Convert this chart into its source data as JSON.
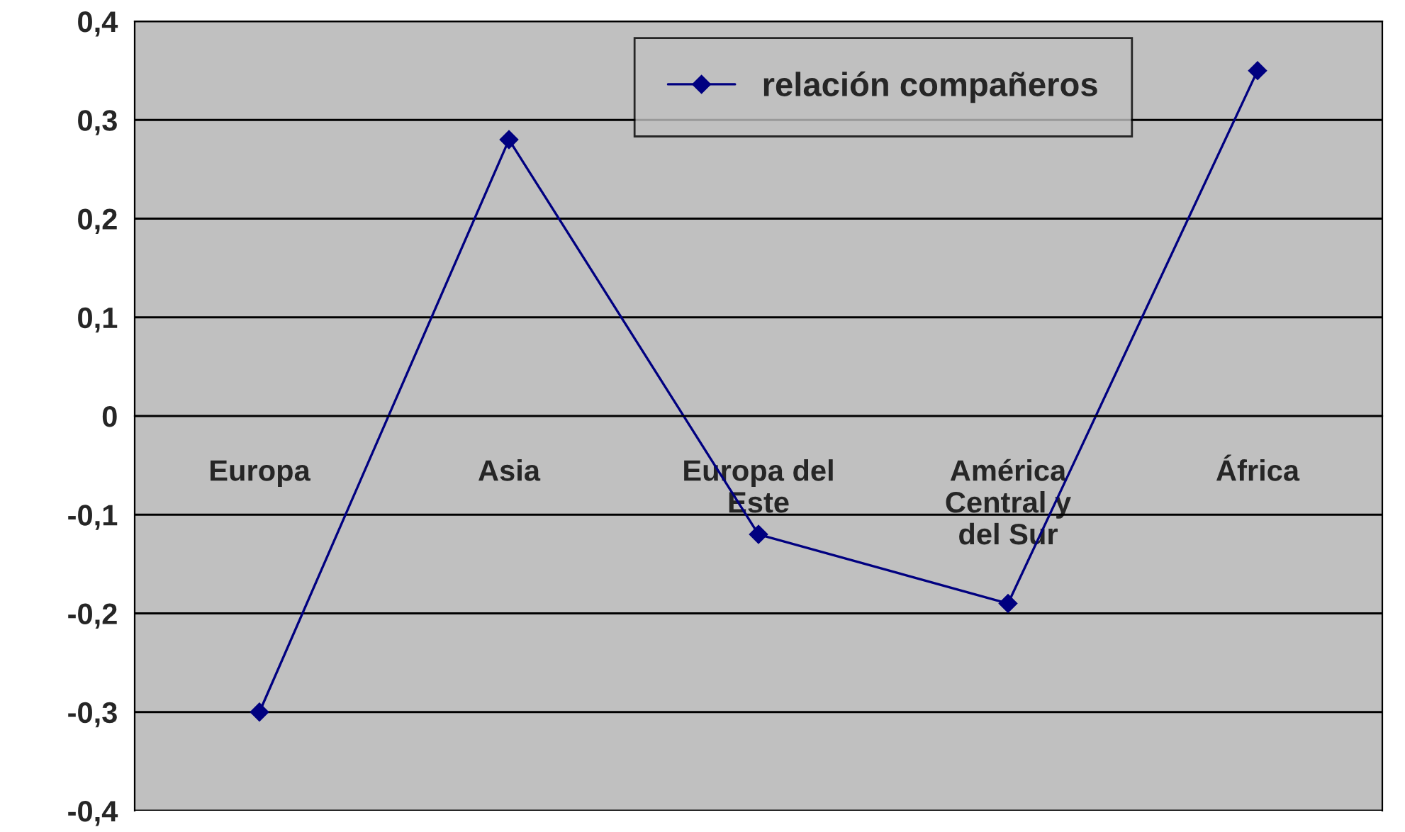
{
  "chart_data": {
    "type": "line",
    "categories": [
      "Europa",
      "Asia",
      "Europa del Este",
      "América Central y del Sur",
      "África"
    ],
    "series": [
      {
        "name": "relación compañeros",
        "color": "#000080",
        "values": [
          -0.3,
          0.28,
          -0.12,
          -0.19,
          0.35
        ]
      }
    ],
    "ylim": [
      -0.4,
      0.4
    ],
    "yticks": [
      {
        "value": -0.4,
        "label": "-0,4"
      },
      {
        "value": -0.3,
        "label": "-0,3"
      },
      {
        "value": -0.2,
        "label": "-0,2"
      },
      {
        "value": -0.1,
        "label": "-0,1"
      },
      {
        "value": 0,
        "label": "0"
      },
      {
        "value": 0.1,
        "label": "0,1"
      },
      {
        "value": 0.2,
        "label": "0,2"
      },
      {
        "value": 0.3,
        "label": "0,3"
      },
      {
        "value": 0.4,
        "label": "0,4"
      }
    ],
    "grid": "y",
    "legend": "top",
    "marker": "diamond",
    "line_style": "solid"
  }
}
